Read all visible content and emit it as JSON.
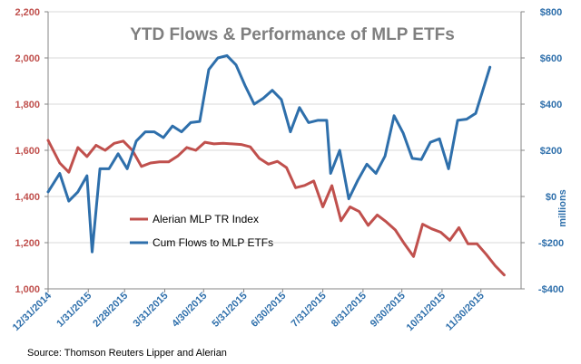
{
  "chart_data": {
    "type": "line",
    "title": "YTD Flows & Performance of MLP ETFs",
    "source": "Source: Thomson Reuters Lipper and Alerian",
    "left_axis": {
      "label": "",
      "range": [
        1000,
        2200
      ],
      "ticks": [
        "1,000",
        "1,200",
        "1,400",
        "1,600",
        "1,800",
        "2,000",
        "2,200"
      ],
      "tick_values": [
        1000,
        1200,
        1400,
        1600,
        1800,
        2000,
        2200
      ],
      "color": "#c0504d"
    },
    "right_axis": {
      "label": "millions",
      "range": [
        -400,
        800
      ],
      "ticks": [
        "-$400",
        "-$200",
        "$0",
        "$200",
        "$400",
        "$600",
        "$800"
      ],
      "tick_values": [
        -400,
        -200,
        0,
        200,
        400,
        600,
        800
      ],
      "color": "#2e6fab"
    },
    "x_axis": {
      "range": [
        "2014-12-31",
        "2015-12-31"
      ],
      "tick_labels": [
        "12/31/2014",
        "1/31/2015",
        "2/28/2015",
        "3/31/2015",
        "4/30/2015",
        "5/31/2015",
        "6/30/2015",
        "7/31/2015",
        "8/31/2015",
        "9/30/2015",
        "10/31/2015",
        "11/30/2015"
      ]
    },
    "legend_position": "lower-left",
    "grid": "horizontal",
    "series": [
      {
        "name": "Alerian MLP TR Index",
        "axis": "left",
        "color": "#c0504d",
        "points": [
          [
            "2014-12-31",
            1643
          ],
          [
            "2015-01-09",
            1545
          ],
          [
            "2015-01-16",
            1505
          ],
          [
            "2015-01-23",
            1612
          ],
          [
            "2015-01-30",
            1573
          ],
          [
            "2015-02-06",
            1622
          ],
          [
            "2015-02-13",
            1600
          ],
          [
            "2015-02-20",
            1630
          ],
          [
            "2015-02-27",
            1640
          ],
          [
            "2015-03-06",
            1600
          ],
          [
            "2015-03-13",
            1530
          ],
          [
            "2015-03-20",
            1545
          ],
          [
            "2015-03-27",
            1550
          ],
          [
            "2015-04-03",
            1550
          ],
          [
            "2015-04-10",
            1575
          ],
          [
            "2015-04-17",
            1612
          ],
          [
            "2015-04-24",
            1600
          ],
          [
            "2015-05-01",
            1635
          ],
          [
            "2015-05-08",
            1628
          ],
          [
            "2015-05-15",
            1630
          ],
          [
            "2015-05-22",
            1628
          ],
          [
            "2015-05-29",
            1625
          ],
          [
            "2015-06-05",
            1615
          ],
          [
            "2015-06-12",
            1565
          ],
          [
            "2015-06-19",
            1540
          ],
          [
            "2015-06-26",
            1552
          ],
          [
            "2015-07-03",
            1525
          ],
          [
            "2015-07-10",
            1438
          ],
          [
            "2015-07-17",
            1448
          ],
          [
            "2015-07-24",
            1467
          ],
          [
            "2015-07-31",
            1355
          ],
          [
            "2015-08-07",
            1447
          ],
          [
            "2015-08-14",
            1295
          ],
          [
            "2015-08-21",
            1355
          ],
          [
            "2015-08-28",
            1335
          ],
          [
            "2015-09-04",
            1275
          ],
          [
            "2015-09-11",
            1320
          ],
          [
            "2015-09-18",
            1290
          ],
          [
            "2015-09-25",
            1255
          ],
          [
            "2015-10-02",
            1195
          ],
          [
            "2015-10-09",
            1140
          ],
          [
            "2015-10-16",
            1280
          ],
          [
            "2015-10-23",
            1260
          ],
          [
            "2015-10-30",
            1245
          ],
          [
            "2015-11-06",
            1210
          ],
          [
            "2015-11-13",
            1265
          ],
          [
            "2015-11-20",
            1195
          ],
          [
            "2015-11-27",
            1195
          ],
          [
            "2015-12-04",
            1150
          ],
          [
            "2015-12-11",
            1100
          ],
          [
            "2015-12-18",
            1060
          ]
        ]
      },
      {
        "name": "Cum Flows to MLP ETFs",
        "axis": "right",
        "color": "#2e6fab",
        "points": [
          [
            "2014-12-31",
            20
          ],
          [
            "2015-01-09",
            100
          ],
          [
            "2015-01-16",
            -20
          ],
          [
            "2015-01-23",
            20
          ],
          [
            "2015-01-30",
            90
          ],
          [
            "2015-02-03",
            -240
          ],
          [
            "2015-02-09",
            120
          ],
          [
            "2015-02-16",
            120
          ],
          [
            "2015-02-23",
            185
          ],
          [
            "2015-03-02",
            120
          ],
          [
            "2015-03-09",
            240
          ],
          [
            "2015-03-16",
            280
          ],
          [
            "2015-03-23",
            280
          ],
          [
            "2015-03-30",
            255
          ],
          [
            "2015-04-06",
            305
          ],
          [
            "2015-04-13",
            280
          ],
          [
            "2015-04-20",
            320
          ],
          [
            "2015-04-27",
            325
          ],
          [
            "2015-05-04",
            550
          ],
          [
            "2015-05-11",
            600
          ],
          [
            "2015-05-18",
            610
          ],
          [
            "2015-05-25",
            570
          ],
          [
            "2015-06-01",
            480
          ],
          [
            "2015-06-08",
            400
          ],
          [
            "2015-06-15",
            425
          ],
          [
            "2015-06-22",
            460
          ],
          [
            "2015-06-29",
            420
          ],
          [
            "2015-07-06",
            280
          ],
          [
            "2015-07-13",
            385
          ],
          [
            "2015-07-20",
            320
          ],
          [
            "2015-07-27",
            330
          ],
          [
            "2015-08-03",
            330
          ],
          [
            "2015-08-06",
            100
          ],
          [
            "2015-08-13",
            200
          ],
          [
            "2015-08-20",
            -10
          ],
          [
            "2015-08-27",
            70
          ],
          [
            "2015-09-03",
            140
          ],
          [
            "2015-09-10",
            100
          ],
          [
            "2015-09-17",
            175
          ],
          [
            "2015-09-24",
            350
          ],
          [
            "2015-10-01",
            275
          ],
          [
            "2015-10-08",
            165
          ],
          [
            "2015-10-15",
            160
          ],
          [
            "2015-10-22",
            235
          ],
          [
            "2015-10-29",
            250
          ],
          [
            "2015-11-05",
            120
          ],
          [
            "2015-11-12",
            330
          ],
          [
            "2015-11-19",
            335
          ],
          [
            "2015-11-26",
            360
          ],
          [
            "2015-12-07",
            560
          ]
        ]
      }
    ]
  }
}
